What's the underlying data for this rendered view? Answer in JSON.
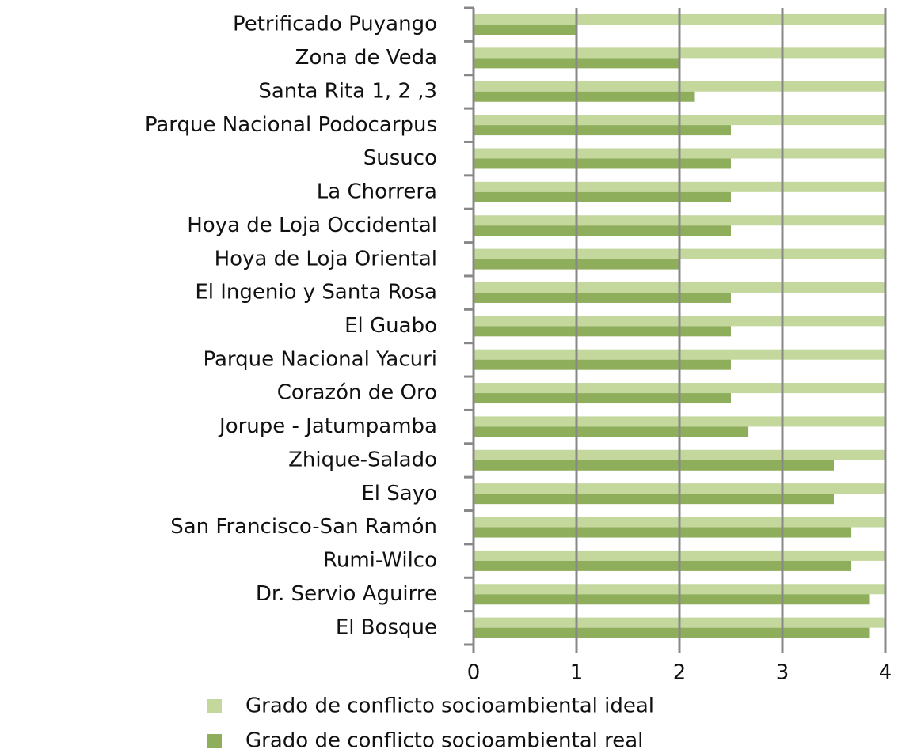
{
  "chart_data": {
    "type": "bar",
    "orientation": "horizontal",
    "categories": [
      "Petrificado Puyango",
      "Zona de Veda",
      "Santa Rita 1, 2 ,3",
      "Parque Nacional Podocarpus",
      "Susuco",
      "La Chorrera",
      "Hoya de Loja Occidental",
      "Hoya de Loja Oriental",
      "El Ingenio y Santa Rosa",
      "El Guabo",
      "Parque Nacional Yacuri",
      "Corazón de Oro",
      "Jorupe - Jatumpamba",
      "Zhique-Salado",
      "El Sayo",
      "San Francisco-San Ramón",
      "Rumi-Wilco",
      "Dr. Servio Aguirre",
      "El Bosque"
    ],
    "series": [
      {
        "name": "Grado de conflicto socioambiental ideal",
        "color": "#c4d79d",
        "values": [
          4,
          4,
          4,
          4,
          4,
          4,
          4,
          4,
          4,
          4,
          4,
          4,
          4,
          4,
          4,
          4,
          4,
          4,
          4
        ]
      },
      {
        "name": "Grado de conflicto socioambiental real",
        "color": "#8fae5c",
        "values": [
          1,
          2,
          2.15,
          2.5,
          2.5,
          2.5,
          2.5,
          2,
          2.5,
          2.5,
          2.5,
          2.5,
          2.67,
          3.5,
          3.5,
          3.67,
          3.67,
          3.85,
          3.85
        ]
      }
    ],
    "xlim": [
      0,
      4
    ],
    "xticks": [
      0,
      1,
      2,
      3,
      4
    ],
    "grid": true,
    "legend": "bottom"
  }
}
